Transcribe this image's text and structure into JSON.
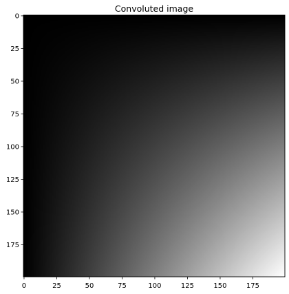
{
  "chart_data": {
    "type": "heatmap",
    "title": "Convoluted image",
    "xlabel": "",
    "ylabel": "",
    "colormap": "gray",
    "image_shape": [
      200,
      200
    ],
    "value_pattern": "pixel value proportional to row index times column index: black at top-left, rising to white at bottom-right",
    "xlim": [
      -0.5,
      199.5
    ],
    "ylim": [
      199.5,
      -0.5
    ],
    "y_axis_inverted": true,
    "xticks": [
      0,
      25,
      50,
      75,
      100,
      125,
      150,
      175
    ],
    "yticks": [
      0,
      25,
      50,
      75,
      100,
      125,
      150,
      175
    ],
    "grid": false,
    "legend": "none",
    "colors": {
      "low": "#000000",
      "high": "#ffffff",
      "frame": "#000000"
    }
  }
}
